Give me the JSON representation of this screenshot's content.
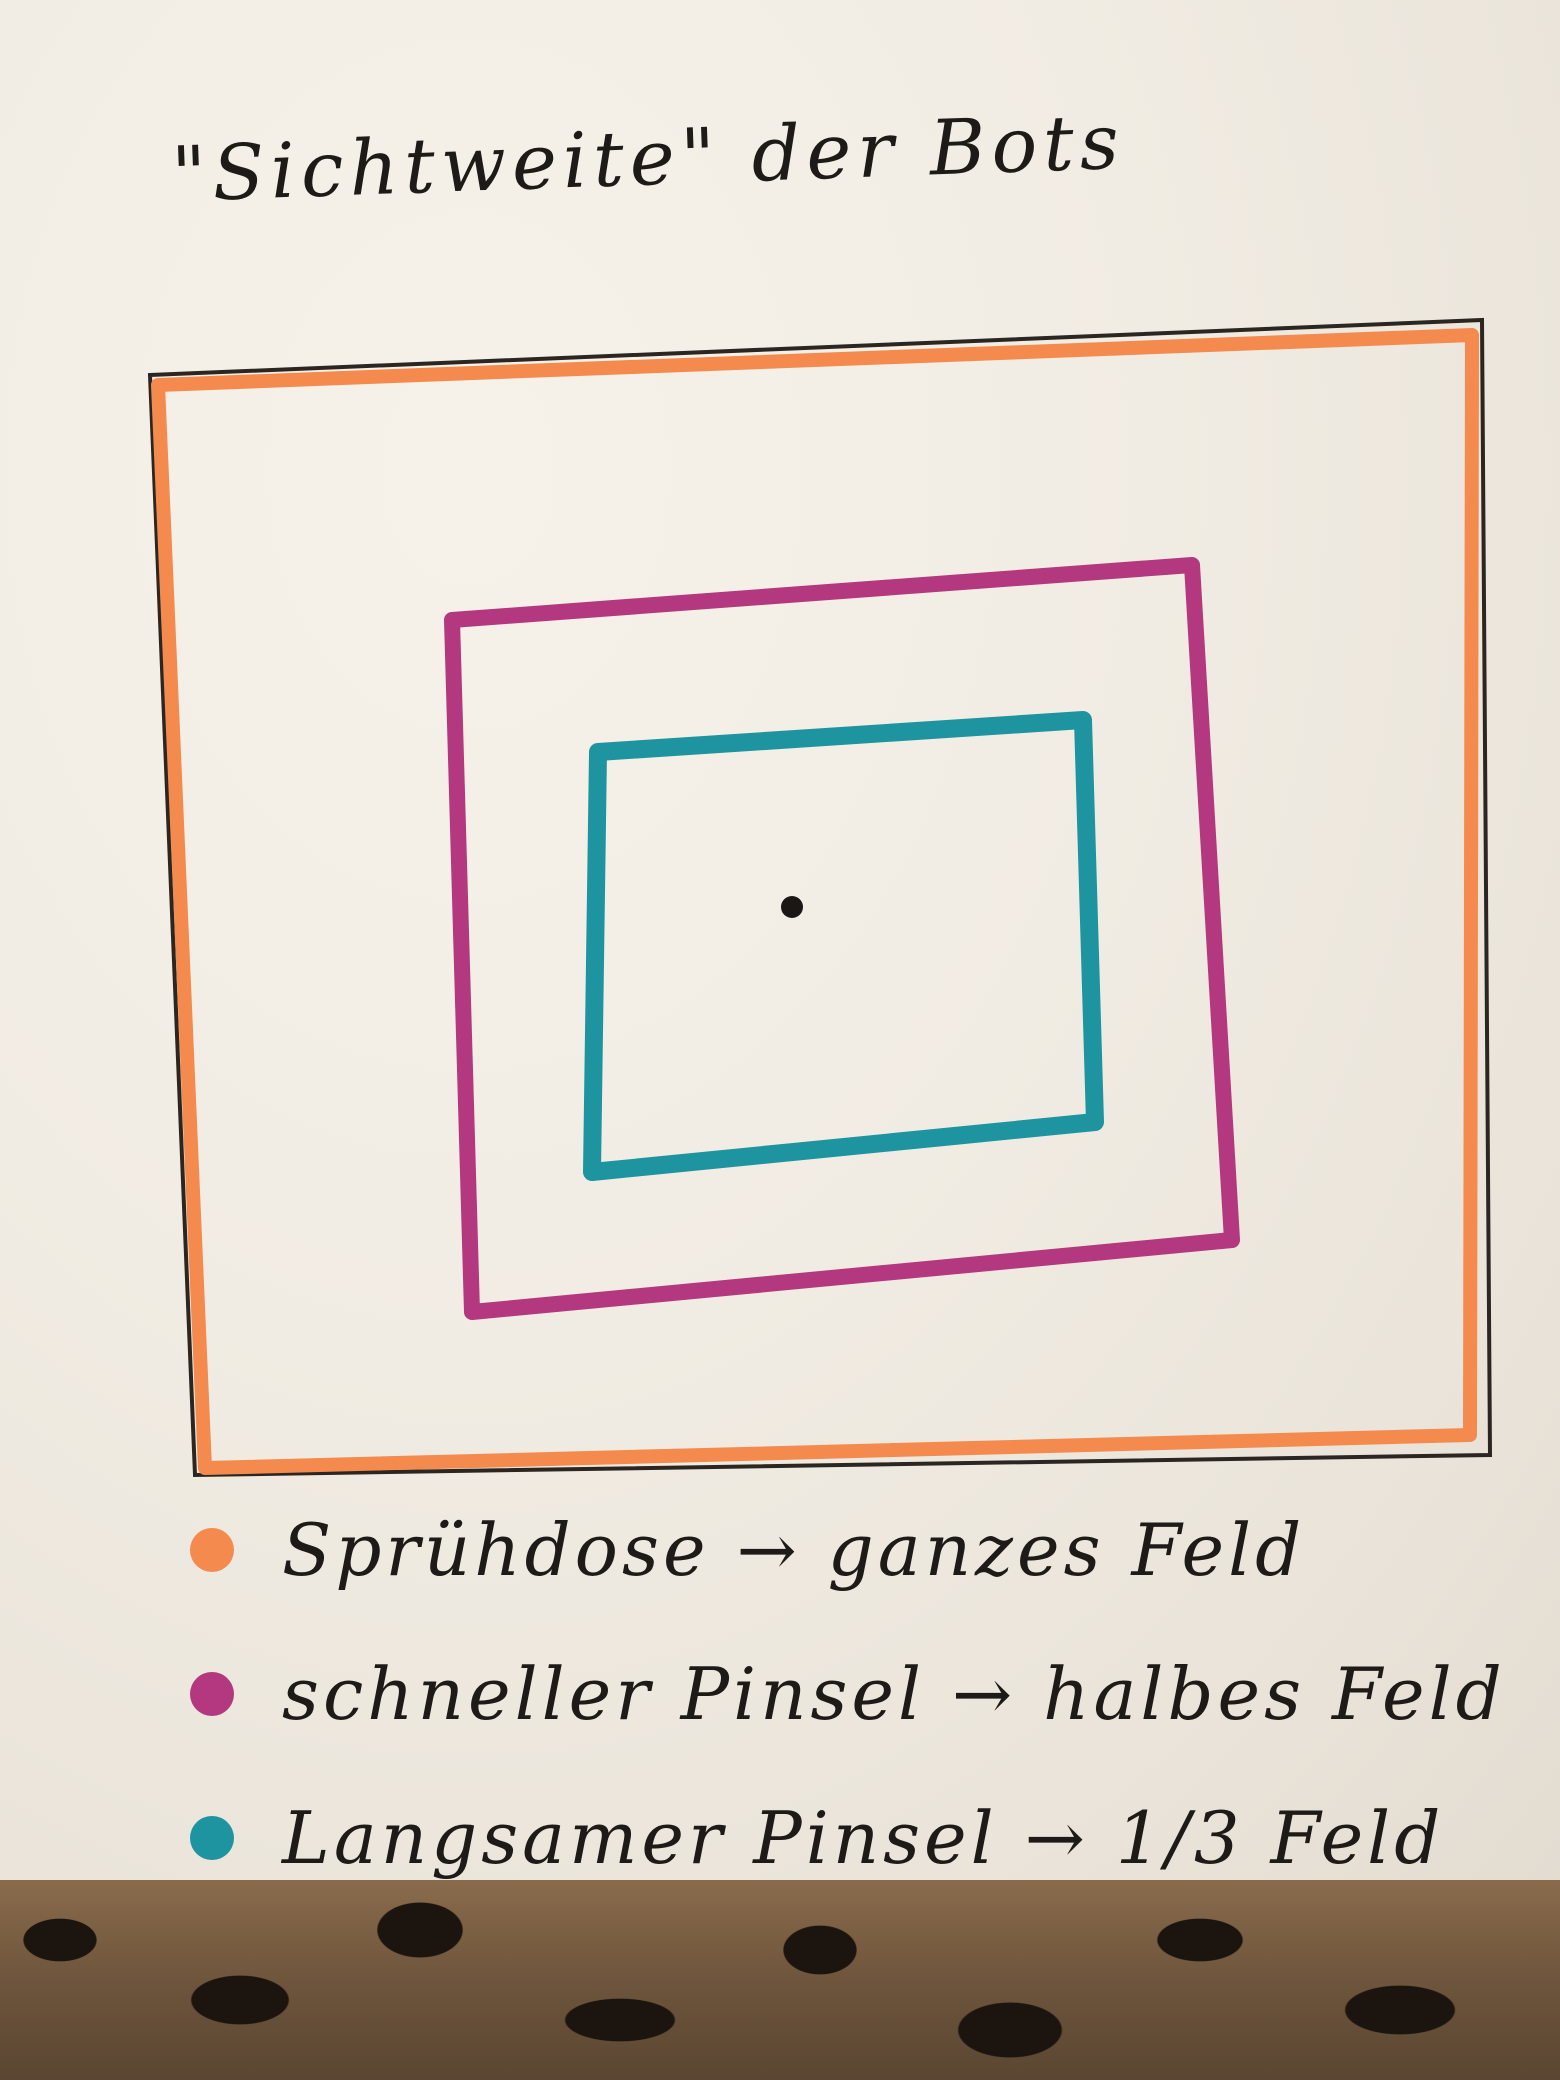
{
  "title": "\"Sichtweite\" der Bots",
  "colors": {
    "frame": "#2b2621",
    "spray": "#f58a4e",
    "fast_brush": "#b3387f",
    "slow_brush": "#1e94a0",
    "center_dot": "#1a1714"
  },
  "legend": [
    {
      "label": "Sprühdose → ganzes Feld",
      "color": "#f58a4e"
    },
    {
      "label": "schneller Pinsel → halbes Feld",
      "color": "#b3387f"
    },
    {
      "label": "Langsamer Pinsel → 1/3 Feld",
      "color": "#1e94a0"
    }
  ]
}
